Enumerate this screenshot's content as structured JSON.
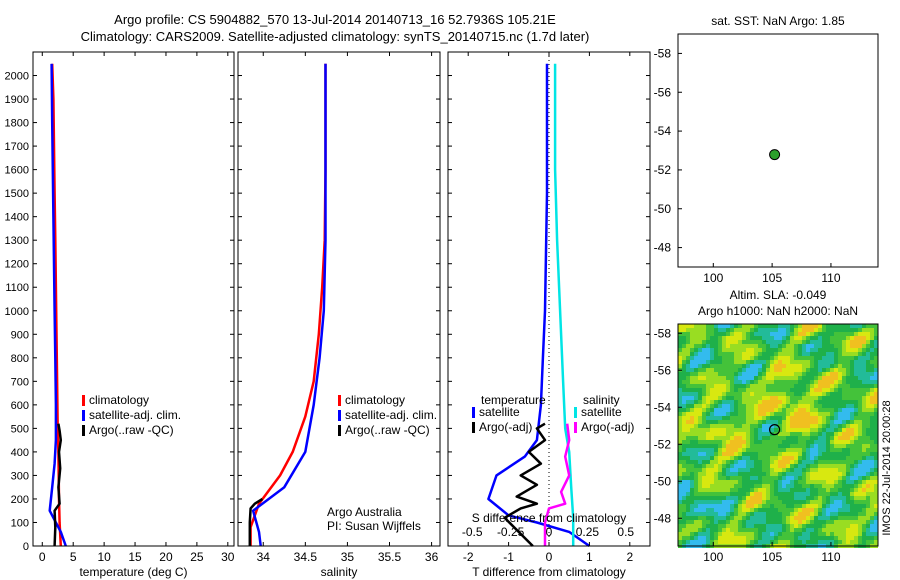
{
  "header": {
    "title_line1": "Argo profile: CS 5904882_570 13-Jul-2014 20140713_16 52.7936S 105.21E",
    "title_line2": "Climatology: CARS2009. Satellite-adjusted climatology: synTS_20140715.nc (1.7d later)"
  },
  "colors": {
    "climatology": "#ff0000",
    "satellite": "#0000ff",
    "argo": "#000000",
    "salinity_sat": "#00e5e5",
    "salinity_argo": "#ff00ff"
  },
  "chart_data": [
    {
      "id": "temperature",
      "type": "line",
      "xlabel": "temperature (deg C)",
      "xlim": [
        -1.5,
        31
      ],
      "xticks": [
        0,
        5,
        10,
        15,
        20,
        25,
        30
      ],
      "ylim": [
        2100,
        0
      ],
      "yticks": [
        0,
        100,
        200,
        300,
        400,
        500,
        600,
        700,
        800,
        900,
        1000,
        1100,
        1200,
        1300,
        1400,
        1500,
        1600,
        1700,
        1800,
        1900,
        2000
      ],
      "legend": [
        "climatology",
        "satellite-adj. clim.",
        "Argo(..raw -QC)"
      ],
      "series": [
        {
          "name": "climatology",
          "color": "#ff0000",
          "x": [
            3.0,
            2.8,
            2.7,
            2.65,
            2.6,
            2.5,
            2.4,
            2.3,
            2.2,
            2.1,
            2.0,
            1.9,
            1.8,
            1.6
          ],
          "y": [
            0,
            100,
            200,
            300,
            400,
            500,
            700,
            900,
            1100,
            1300,
            1500,
            1700,
            1900,
            2050
          ]
        },
        {
          "name": "satellite-adj. clim.",
          "color": "#0000ff",
          "x": [
            3.8,
            3.0,
            1.2,
            1.6,
            2.0,
            2.2,
            2.2,
            2.1,
            2.0,
            1.9,
            1.8,
            1.7,
            1.6,
            1.5
          ],
          "y": [
            0,
            60,
            150,
            250,
            350,
            450,
            600,
            800,
            1000,
            1200,
            1400,
            1600,
            1800,
            2050
          ]
        },
        {
          "name": "Argo(..raw -QC)",
          "color": "#000000",
          "x": [
            2.0,
            2.1,
            2.0,
            2.8,
            2.6,
            2.9,
            2.7,
            3.0,
            2.8,
            2.6
          ],
          "y": [
            0,
            80,
            150,
            180,
            250,
            330,
            400,
            450,
            490,
            520
          ]
        }
      ]
    },
    {
      "id": "salinity",
      "type": "line",
      "xlabel": "salinity",
      "xlim": [
        33.7,
        36.1
      ],
      "xticks": [
        34,
        34.5,
        35,
        35.5,
        36
      ],
      "ylim": [
        2100,
        0
      ],
      "legend": [
        "climatology",
        "satellite-adj. clim.",
        "Argo(..raw -QC)"
      ],
      "annotation": [
        "Argo Australia",
        "PI: Susan Wijffels"
      ],
      "series": [
        {
          "name": "climatology",
          "color": "#ff0000",
          "x": [
            33.85,
            33.85,
            33.95,
            34.2,
            34.35,
            34.5,
            34.6,
            34.66,
            34.7,
            34.73,
            34.74,
            34.74
          ],
          "y": [
            0,
            80,
            180,
            300,
            400,
            550,
            700,
            900,
            1100,
            1300,
            1600,
            2050
          ]
        },
        {
          "name": "satellite-adj. clim.",
          "color": "#0000ff",
          "x": [
            33.97,
            33.95,
            33.88,
            34.25,
            34.5,
            34.6,
            34.67,
            34.72,
            34.74,
            34.74
          ],
          "y": [
            0,
            60,
            150,
            250,
            400,
            600,
            800,
            1000,
            1300,
            2050
          ]
        },
        {
          "name": "Argo(..raw -QC)",
          "color": "#000000",
          "x": [
            33.84,
            33.84,
            33.85,
            33.9,
            33.99
          ],
          "y": [
            0,
            100,
            160,
            180,
            200
          ]
        }
      ]
    },
    {
      "id": "difference",
      "type": "line",
      "xlabel_bottom": "T difference from climatology",
      "xlabel_top": "S difference from climatology",
      "xlim": [
        -2.5,
        2.5
      ],
      "xticks": [
        -2,
        -1,
        0,
        1,
        2
      ],
      "s_ticks": [
        {
          "label": "-0.5",
          "x": -1.9
        },
        {
          "label": "-0.25",
          "x": -0.95
        },
        {
          "label": "0",
          "x": 0
        },
        {
          "label": "0.25",
          "x": 0.95
        },
        {
          "label": "0.5",
          "x": 1.9
        }
      ],
      "ylim": [
        2100,
        0
      ],
      "legend_temperature": {
        "heading": "temperature",
        "items": [
          "satellite",
          "Argo(-adj)"
        ]
      },
      "legend_salinity": {
        "heading": "salinity",
        "items": [
          "satellite",
          "Argo(-adj)"
        ]
      },
      "series": [
        {
          "name": "temperature satellite",
          "color": "#0000ff",
          "x": [
            1.0,
            0.5,
            -0.3,
            -1.0,
            -1.5,
            -1.3,
            -0.6,
            -0.3,
            -0.2,
            -0.15,
            -0.1,
            -0.05,
            -0.05
          ],
          "y": [
            0,
            60,
            100,
            130,
            200,
            300,
            380,
            450,
            600,
            800,
            1000,
            1500,
            2050
          ]
        },
        {
          "name": "temperature Argo(-adj)",
          "color": "#000000",
          "x": [
            -0.4,
            -1.1,
            -0.7,
            -0.3,
            -0.8,
            -0.3,
            -0.7,
            -0.2,
            -0.5,
            -0.1,
            -0.3,
            -0.1
          ],
          "y": [
            0,
            120,
            160,
            180,
            210,
            260,
            300,
            350,
            400,
            450,
            500,
            520
          ]
        },
        {
          "name": "salinity satellite",
          "color": "#00e5e5",
          "x": [
            0.6,
            0.6,
            0.55,
            0.5,
            0.4,
            0.35,
            0.3,
            0.25,
            0.2,
            0.15,
            0.15
          ],
          "y": [
            0,
            120,
            250,
            400,
            500,
            700,
            900,
            1100,
            1300,
            1600,
            2050
          ]
        },
        {
          "name": "salinity Argo(-adj)",
          "color": "#ff00ff",
          "x": [
            -0.1,
            -0.1,
            0.0,
            0.4,
            0.3,
            0.5,
            0.4,
            0.5,
            0.45
          ],
          "y": [
            0,
            100,
            160,
            180,
            230,
            300,
            380,
            450,
            520
          ]
        }
      ]
    },
    {
      "id": "sst_map",
      "type": "scatter",
      "title": "sat. SST: NaN Argo: 1.85",
      "xlim": [
        97,
        114
      ],
      "ylim": [
        -59,
        -47
      ],
      "xticks": [
        100,
        105,
        110
      ],
      "yticks": [
        -48,
        -50,
        -52,
        -54,
        -56,
        -58
      ],
      "point": {
        "x": 105.21,
        "y": -52.79
      }
    },
    {
      "id": "sla_map",
      "type": "heatmap",
      "title_line1": "Altim. SLA: -0.049",
      "title_line2": "Argo h1000: NaN h2000: NaN",
      "xlim": [
        97,
        114
      ],
      "ylim": [
        -58.5,
        -46.5
      ],
      "xticks": [
        100,
        105,
        110
      ],
      "yticks": [
        -48,
        -50,
        -52,
        -54,
        -56,
        -58
      ],
      "point": {
        "x": 105.21,
        "y": -52.79
      },
      "side_label": "IMOS 22-Jul-2014 20:00:28"
    }
  ]
}
